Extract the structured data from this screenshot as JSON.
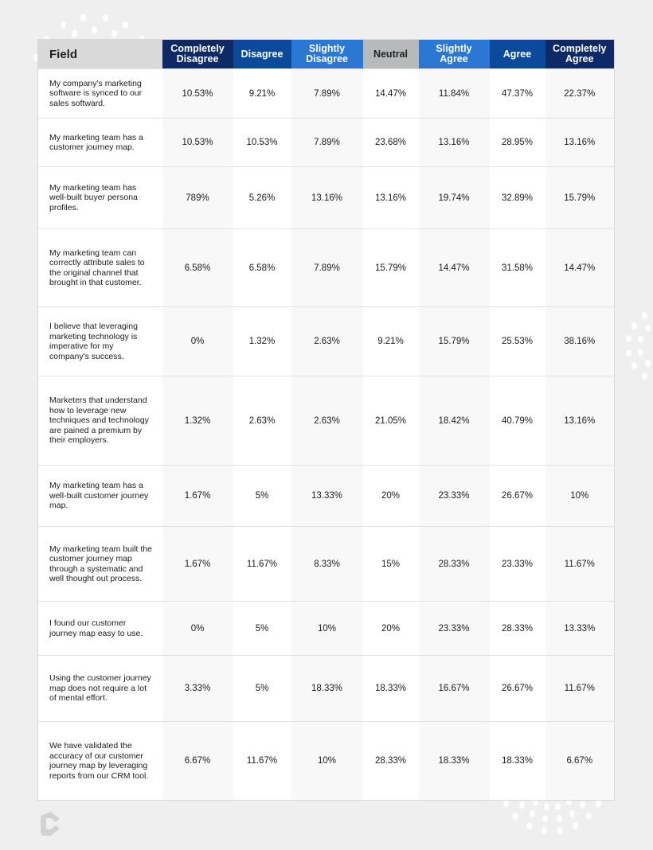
{
  "header": {
    "field_label": "Field",
    "columns": [
      {
        "label": "Completely Disagree",
        "color": "#0d2a66"
      },
      {
        "label": "Disagree",
        "color": "#0b4a9a"
      },
      {
        "label": "Slightly Disagree",
        "color": "#2a78d4"
      },
      {
        "label": "Neutral",
        "color": "#b8b9bb",
        "text_color": "#222222"
      },
      {
        "label": "Slightly Agree",
        "color": "#2a78d4"
      },
      {
        "label": "Agree",
        "color": "#0b4a9a"
      },
      {
        "label": "Completely Agree",
        "color": "#0d2a66"
      }
    ]
  },
  "rows": [
    {
      "field": "My company's marketing software is synced to our sales softward.",
      "values": [
        "10.53%",
        "9.21%",
        "7.89%",
        "14.47%",
        "11.84%",
        "47.37%",
        "22.37%"
      ]
    },
    {
      "field": "My marketing team has a customer journey map.",
      "values": [
        "10.53%",
        "10.53%",
        "7.89%",
        "23.68%",
        "13.16%",
        "28.95%",
        "13.16%"
      ]
    },
    {
      "field": "My marketing team has well-built buyer persona profiles.",
      "values": [
        "789%",
        "5.26%",
        "13.16%",
        "13.16%",
        "19.74%",
        "32.89%",
        "15.79%"
      ]
    },
    {
      "field": "My marketing team can correctly attribute sales to the original channel that brought in that customer.",
      "values": [
        "6.58%",
        "6.58%",
        "7.89%",
        "15.79%",
        "14.47%",
        "31.58%",
        "14.47%"
      ]
    },
    {
      "field": "I believe that leveraging marketing technology is imperative for my company's success.",
      "values": [
        "0%",
        "1.32%",
        "2.63%",
        "9.21%",
        "15.79%",
        "25.53%",
        "38.16%"
      ]
    },
    {
      "field": "Marketers that understand how to leverage new techniques and technology are pained a premium by their employers.",
      "values": [
        "1.32%",
        "2.63%",
        "2.63%",
        "21.05%",
        "18.42%",
        "40.79%",
        "13.16%"
      ]
    },
    {
      "field": "My marketing team has a well-built customer journey map.",
      "values": [
        "1.67%",
        "5%",
        "13.33%",
        "20%",
        "23.33%",
        "26.67%",
        "10%"
      ]
    },
    {
      "field": "My marketing team built the customer journey map through a systematic and well thought out process.",
      "values": [
        "1.67%",
        "11.67%",
        "8.33%",
        "15%",
        "28.33%",
        "23.33%",
        "11.67%"
      ]
    },
    {
      "field": "I found our customer journey map easy to use.",
      "values": [
        "0%",
        "5%",
        "10%",
        "20%",
        "23.33%",
        "28.33%",
        "13.33%"
      ]
    },
    {
      "field": "Using the customer journey map does not require a lot of mental effort.",
      "values": [
        "3.33%",
        "5%",
        "18.33%",
        "18.33%",
        "16.67%",
        "26.67%",
        "11.67%"
      ]
    },
    {
      "field": "We have validated the accuracy of our customer journey map by leveraging reports from our CRM tool.",
      "values": [
        "6.67%",
        "11.67%",
        "10%",
        "28.33%",
        "18.33%",
        "18.33%",
        "6.67%"
      ]
    }
  ],
  "logo": {
    "icon": "brand-logo-icon"
  }
}
